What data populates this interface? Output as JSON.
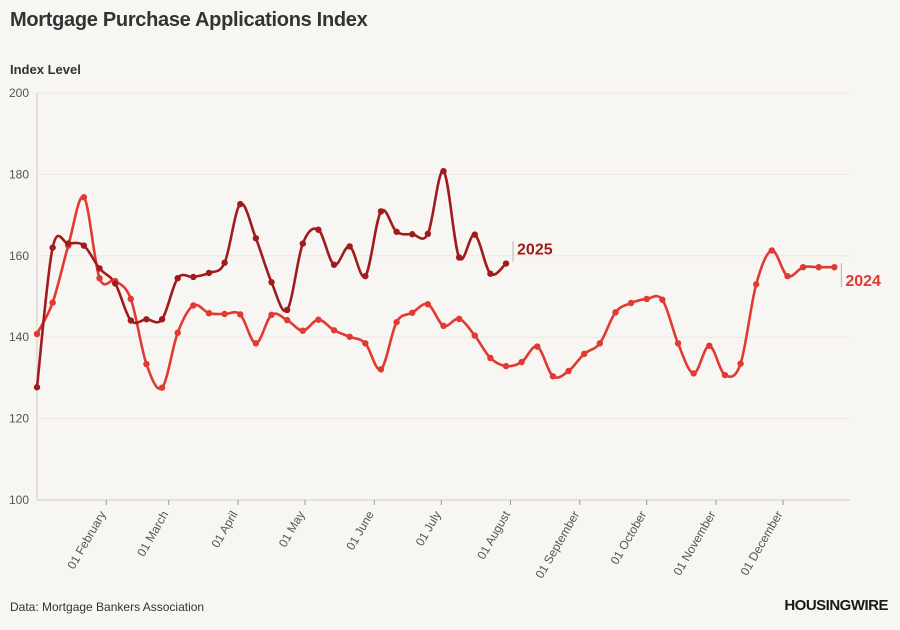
{
  "title": "Mortgage Purchase Applications Index",
  "source": "Data: Mortgage Bankers Association",
  "logo": "HOUSINGWIRE",
  "chart_data": {
    "type": "line",
    "title": "Mortgage Purchase Applications Index",
    "ylabel": "Index Level",
    "xlabel": "",
    "ylim": [
      100,
      200
    ],
    "y_ticks": [
      100,
      120,
      140,
      160,
      180,
      200
    ],
    "x_range_days": [
      0,
      364
    ],
    "x_ticks": [
      {
        "label": "01 February",
        "day": 31
      },
      {
        "label": "01 March",
        "day": 59
      },
      {
        "label": "01 April",
        "day": 90
      },
      {
        "label": "01 May",
        "day": 120
      },
      {
        "label": "01 June",
        "day": 151
      },
      {
        "label": "01 July",
        "day": 181
      },
      {
        "label": "01 August",
        "day": 212
      },
      {
        "label": "01 September",
        "day": 243
      },
      {
        "label": "01 October",
        "day": 273
      },
      {
        "label": "01 November",
        "day": 304
      },
      {
        "label": "01 December",
        "day": 334
      }
    ],
    "grid": true,
    "series": [
      {
        "name": "2024",
        "color": "#e03a32",
        "x": [
          0,
          7,
          14,
          21,
          28,
          35,
          42,
          49,
          56,
          63,
          70,
          77,
          84,
          91,
          98,
          105,
          112,
          119,
          126,
          133,
          140,
          147,
          154,
          161,
          168,
          175,
          182,
          189,
          196,
          203,
          210,
          217,
          224,
          231,
          238,
          245,
          252,
          259,
          266,
          273,
          280,
          287,
          294,
          301,
          308,
          315,
          322,
          329,
          336,
          343,
          350,
          357
        ],
        "values": [
          140.8,
          148.5,
          162.5,
          174.4,
          154.5,
          153.8,
          149.4,
          133.4,
          127.6,
          141.1,
          147.8,
          145.9,
          145.7,
          145.6,
          138.5,
          145.5,
          144.2,
          141.6,
          144.3,
          141.7,
          140.1,
          138.5,
          132.1,
          143.7,
          146.0,
          148.1,
          142.8,
          144.5,
          140.4,
          134.9,
          132.9,
          133.9,
          137.7,
          130.4,
          131.7,
          135.9,
          138.5,
          146.1,
          148.4,
          149.4,
          149.2,
          138.5,
          131.1,
          137.9,
          130.7,
          133.5,
          153.0,
          161.3,
          155.0,
          157.2,
          157.2,
          157.2
        ]
      },
      {
        "name": "2025",
        "color": "#a01c1c",
        "x": [
          0,
          7,
          14,
          21,
          28,
          35,
          42,
          49,
          56,
          63,
          70,
          77,
          84,
          91,
          98,
          105,
          112,
          119,
          126,
          133,
          140,
          147,
          154,
          161,
          168,
          175,
          182,
          189,
          196,
          203,
          210
        ],
        "values": [
          127.7,
          162.0,
          163.0,
          162.5,
          156.9,
          153.2,
          144.1,
          144.4,
          144.4,
          154.5,
          154.8,
          155.8,
          158.3,
          172.7,
          164.3,
          153.5,
          146.7,
          163.0,
          166.4,
          157.8,
          162.3,
          155.0,
          170.9,
          165.9,
          165.3,
          165.4,
          180.8,
          159.6,
          165.2,
          155.6,
          158.1
        ]
      }
    ]
  }
}
